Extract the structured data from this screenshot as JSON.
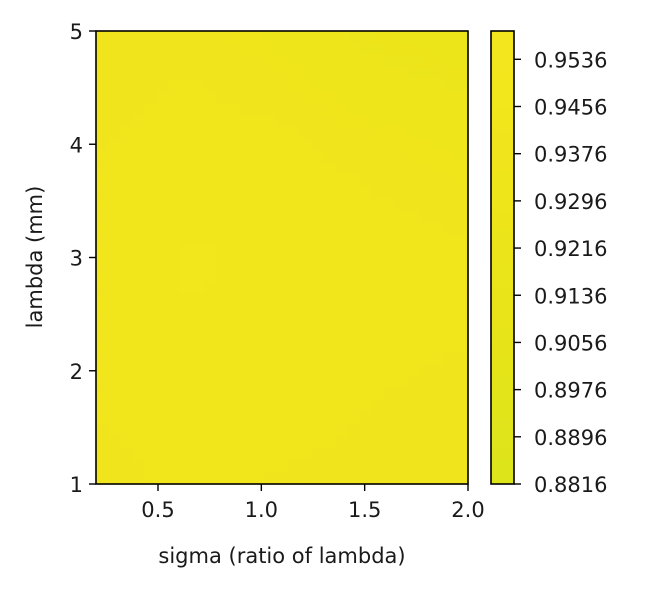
{
  "chart_data": {
    "type": "heatmap",
    "title": "",
    "xlabel": "sigma (ratio of lambda)",
    "ylabel": "lambda (mm)",
    "xlim": [
      0.2,
      2.0
    ],
    "ylim": [
      1,
      5
    ],
    "x_ticks": [
      {
        "value": 0.5,
        "label": "0.5"
      },
      {
        "value": 1.0,
        "label": "1.0"
      },
      {
        "value": 1.5,
        "label": "1.5"
      },
      {
        "value": 2.0,
        "label": "2.0"
      }
    ],
    "y_ticks": [
      {
        "value": 1,
        "label": "1"
      },
      {
        "value": 2,
        "label": "2"
      },
      {
        "value": 3,
        "label": "3"
      },
      {
        "value": 4,
        "label": "4"
      },
      {
        "value": 5,
        "label": "5"
      }
    ],
    "colorbar": {
      "min": 0.8816,
      "max": 0.9584,
      "ticks": [
        {
          "value": 0.8816,
          "label": "0.8816"
        },
        {
          "value": 0.8896,
          "label": "0.8896"
        },
        {
          "value": 0.8976,
          "label": "0.8976"
        },
        {
          "value": 0.9056,
          "label": "0.9056"
        },
        {
          "value": 0.9136,
          "label": "0.9136"
        },
        {
          "value": 0.9216,
          "label": "0.9216"
        },
        {
          "value": 0.9296,
          "label": "0.9296"
        },
        {
          "value": 0.9376,
          "label": "0.9376"
        },
        {
          "value": 0.9456,
          "label": "0.9456"
        },
        {
          "value": 0.9536,
          "label": "0.9536"
        }
      ],
      "colors": [
        "#dde41a",
        "#e7e419",
        "#efe51b",
        "#f4e61e"
      ]
    },
    "x": [
      0.2,
      0.65,
      1.1,
      1.55,
      2.0
    ],
    "y": [
      1,
      2,
      3,
      4,
      5
    ],
    "z": [
      [
        0.938,
        0.942,
        0.94,
        0.939,
        0.938
      ],
      [
        0.942,
        0.945,
        0.944,
        0.941,
        0.94
      ],
      [
        0.943,
        0.946,
        0.945,
        0.944,
        0.942
      ],
      [
        0.94,
        0.943,
        0.942,
        0.938,
        0.934
      ],
      [
        0.938,
        0.939,
        0.934,
        0.925,
        0.92
      ]
    ]
  }
}
